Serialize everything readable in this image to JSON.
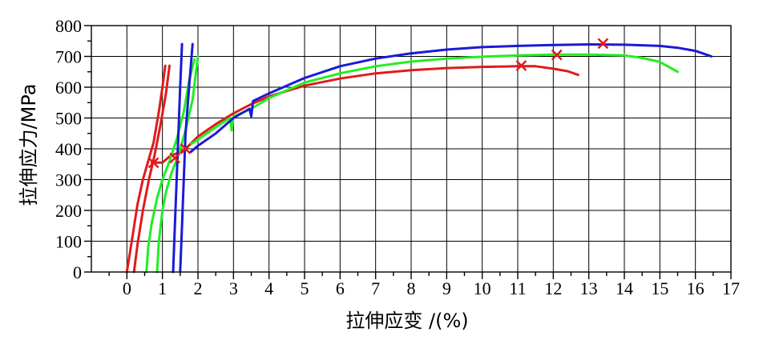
{
  "chart_data": {
    "type": "line",
    "xlabel": "拉伸应变 /(%)",
    "ylabel": "拉伸应力/MPa",
    "xlim": [
      -1,
      17
    ],
    "ylim": [
      0,
      800
    ],
    "x_ticks": [
      "0",
      "1",
      "2",
      "3",
      "4",
      "5",
      "6",
      "7",
      "8",
      "9",
      "10",
      "11",
      "12",
      "13",
      "14",
      "15",
      "16",
      "17"
    ],
    "y_ticks": [
      "0",
      "100",
      "200",
      "300",
      "400",
      "500",
      "600",
      "700",
      "800"
    ],
    "grid": true,
    "legend": "none",
    "colors": {
      "red": "#e01b1b",
      "green": "#22ee22",
      "blue": "#1a1ad6",
      "marker": "#e01b1b"
    },
    "series": [
      {
        "color": "red",
        "segments": [
          [
            [
              0.0,
              0
            ],
            [
              0.15,
              110
            ],
            [
              0.3,
              220
            ],
            [
              0.45,
              300
            ],
            [
              0.6,
              360
            ],
            [
              0.75,
              420
            ],
            [
              0.9,
              520
            ],
            [
              1.0,
              600
            ],
            [
              1.08,
              670
            ]
          ],
          [
            [
              0.2,
              0
            ],
            [
              0.3,
              90
            ],
            [
              0.45,
              200
            ],
            [
              0.62,
              300
            ],
            [
              0.78,
              380
            ],
            [
              0.95,
              480
            ],
            [
              1.1,
              580
            ],
            [
              1.2,
              670
            ]
          ],
          [
            [
              0.7,
              355
            ],
            [
              1.0,
              355
            ],
            [
              1.2,
              375
            ],
            [
              1.4,
              385
            ],
            [
              1.7,
              405
            ],
            [
              2.0,
              440
            ],
            [
              2.5,
              480
            ],
            [
              3.0,
              515
            ],
            [
              3.5,
              545
            ],
            [
              4.0,
              570
            ],
            [
              5.0,
              605
            ],
            [
              6.0,
              628
            ],
            [
              7.0,
              645
            ],
            [
              8.0,
              655
            ],
            [
              9.0,
              662
            ],
            [
              10.0,
              666
            ],
            [
              11.0,
              668
            ],
            [
              11.5,
              668
            ],
            [
              12.0,
              660
            ],
            [
              12.4,
              652
            ],
            [
              12.7,
              640
            ]
          ]
        ]
      },
      {
        "color": "green",
        "segments": [
          [
            [
              0.55,
              0
            ],
            [
              0.6,
              80
            ],
            [
              0.7,
              160
            ],
            [
              0.85,
              240
            ],
            [
              1.0,
              300
            ],
            [
              1.2,
              360
            ],
            [
              1.4,
              430
            ],
            [
              1.6,
              520
            ],
            [
              1.75,
              620
            ],
            [
              1.9,
              690
            ]
          ],
          [
            [
              0.85,
              0
            ],
            [
              0.9,
              100
            ],
            [
              1.0,
              200
            ],
            [
              1.1,
              260
            ],
            [
              1.25,
              320
            ],
            [
              1.45,
              380
            ],
            [
              1.65,
              460
            ],
            [
              1.85,
              560
            ],
            [
              2.0,
              700
            ]
          ],
          [
            [
              1.6,
              400
            ],
            [
              2.0,
              430
            ],
            [
              2.5,
              470
            ],
            [
              2.9,
              500
            ],
            [
              2.95,
              460
            ],
            [
              3.0,
              505
            ],
            [
              3.5,
              530
            ],
            [
              4.0,
              565
            ],
            [
              5.0,
              615
            ],
            [
              6.0,
              645
            ],
            [
              7.0,
              668
            ],
            [
              8.0,
              683
            ],
            [
              9.0,
              693
            ],
            [
              10.0,
              699
            ],
            [
              11.0,
              703
            ],
            [
              12.0,
              706
            ],
            [
              13.0,
              706
            ],
            [
              14.0,
              703
            ],
            [
              14.5,
              695
            ],
            [
              15.0,
              682
            ],
            [
              15.5,
              650
            ]
          ]
        ]
      },
      {
        "color": "blue",
        "segments": [
          [
            [
              1.3,
              0
            ],
            [
              1.35,
              150
            ],
            [
              1.4,
              300
            ],
            [
              1.45,
              450
            ],
            [
              1.5,
              600
            ],
            [
              1.55,
              740
            ]
          ],
          [
            [
              1.5,
              0
            ],
            [
              1.55,
              150
            ],
            [
              1.6,
              300
            ],
            [
              1.65,
              450
            ],
            [
              1.75,
              600
            ],
            [
              1.85,
              740
            ]
          ],
          [
            [
              1.8,
              390
            ],
            [
              2.0,
              410
            ],
            [
              2.5,
              450
            ],
            [
              3.0,
              500
            ],
            [
              3.45,
              530
            ],
            [
              3.5,
              505
            ],
            [
              3.55,
              555
            ],
            [
              4.0,
              580
            ],
            [
              5.0,
              630
            ],
            [
              6.0,
              668
            ],
            [
              7.0,
              693
            ],
            [
              8.0,
              710
            ],
            [
              9.0,
              722
            ],
            [
              10.0,
              730
            ],
            [
              11.0,
              734
            ],
            [
              12.0,
              737
            ],
            [
              13.0,
              739
            ],
            [
              14.0,
              738
            ],
            [
              15.0,
              734
            ],
            [
              15.5,
              728
            ],
            [
              16.0,
              718
            ],
            [
              16.45,
              700
            ]
          ]
        ]
      }
    ],
    "markers": [
      {
        "x": 0.75,
        "y": 355
      },
      {
        "x": 1.35,
        "y": 370
      },
      {
        "x": 1.65,
        "y": 400
      },
      {
        "x": 11.1,
        "y": 670
      },
      {
        "x": 12.1,
        "y": 705
      },
      {
        "x": 13.4,
        "y": 742
      }
    ]
  }
}
